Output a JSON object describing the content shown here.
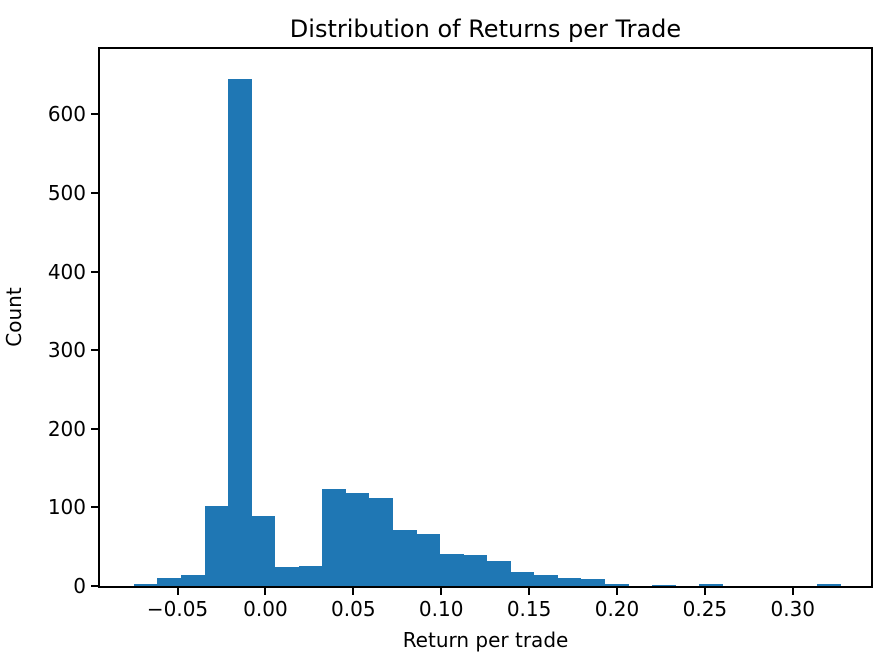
{
  "figure": {
    "title": "Distribution of Returns per Trade",
    "xlabel": "Return per trade",
    "ylabel": "Count"
  },
  "chart_data": {
    "type": "bar",
    "subtype": "histogram",
    "title": "Distribution of Returns per Trade",
    "xlabel": "Return per trade",
    "ylabel": "Count",
    "bar_color": "#1f77b4",
    "background_color": "#ffffff",
    "axis_color": "#000000",
    "grid": false,
    "legend": null,
    "bin_start": -0.0748,
    "bin_width": 0.0134,
    "counts": [
      2,
      10,
      14,
      102,
      645,
      89,
      24,
      26,
      123,
      118,
      112,
      71,
      66,
      41,
      40,
      32,
      18,
      14,
      10,
      9,
      3,
      0,
      1,
      0,
      3,
      0,
      0,
      0,
      0,
      2
    ],
    "xlim": [
      -0.0941,
      0.3445
    ],
    "ylim": [
      0,
      683
    ],
    "x_ticks": [
      -0.05,
      0.0,
      0.05,
      0.1,
      0.15,
      0.2,
      0.25,
      0.3
    ],
    "x_tick_labels": [
      "−0.05",
      "0.00",
      "0.05",
      "0.10",
      "0.15",
      "0.20",
      "0.25",
      "0.30"
    ],
    "y_ticks": [
      0,
      100,
      200,
      300,
      400,
      500,
      600
    ],
    "y_tick_labels": [
      "0",
      "100",
      "200",
      "300",
      "400",
      "500",
      "600"
    ]
  }
}
